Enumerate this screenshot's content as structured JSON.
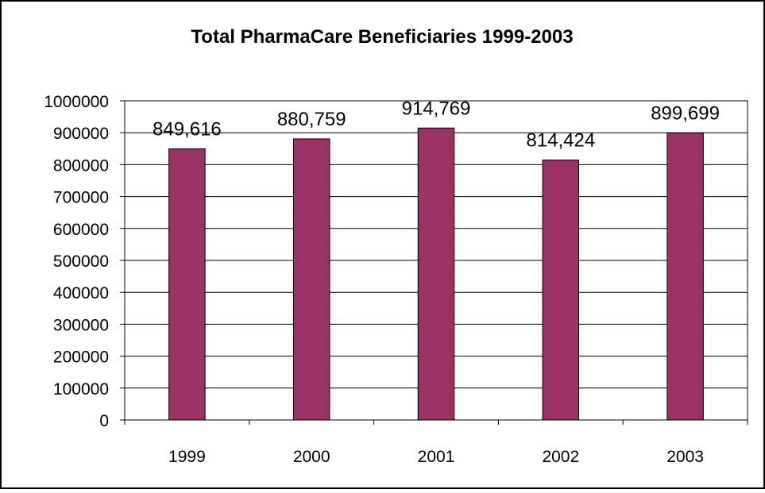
{
  "chart_data": {
    "type": "bar",
    "title": "Total PharmaCare Beneficiaries 1999-2003",
    "categories": [
      "1999",
      "2000",
      "2001",
      "2002",
      "2003"
    ],
    "values": [
      849616,
      880759,
      914769,
      814424,
      899699
    ],
    "data_labels": [
      "849,616",
      "880,759",
      "914,769",
      "814,424",
      "899,699"
    ],
    "ylim": [
      0,
      1000000
    ],
    "y_ticks": [
      "0",
      "100000",
      "200000",
      "300000",
      "400000",
      "500000",
      "600000",
      "700000",
      "800000",
      "900000",
      "1000000"
    ],
    "grid": true,
    "legend": "none",
    "colors": {
      "bar": "#993366",
      "bar_stroke": "#000000",
      "grid": "#000000",
      "frame": "#000000"
    }
  }
}
